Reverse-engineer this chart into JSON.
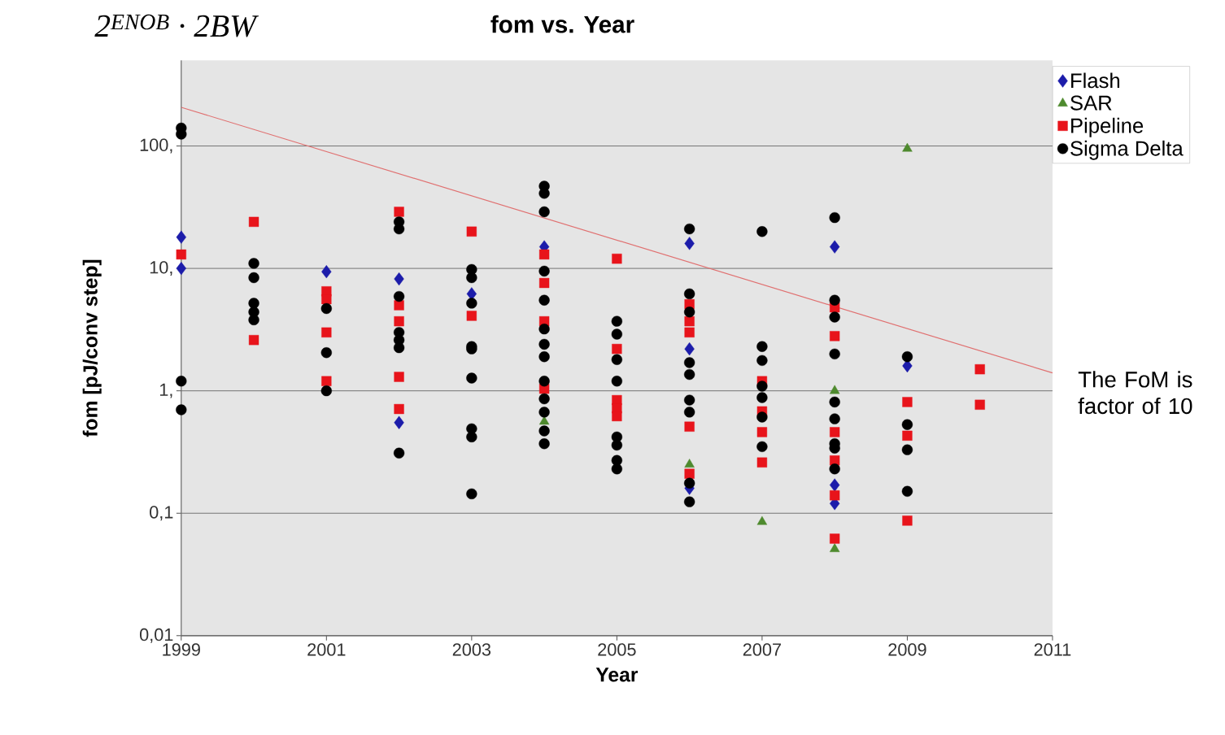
{
  "chart_data": {
    "type": "scatter",
    "title": "fom vs. Year",
    "xlabel": "Year",
    "ylabel": "fom [pJ/conv step]",
    "annotations": [
      "2$^{ENOB}$ · 2BW",
      "The FoM is factor of 10"
    ],
    "xlim": [
      1999,
      2011
    ],
    "xticks": [
      1999,
      2001,
      2003,
      2005,
      2007,
      2009,
      2011
    ],
    "ylim": [
      0.01,
      500
    ],
    "log": "y",
    "yticks": [
      {
        "value": 0.01,
        "label": "0,01"
      },
      {
        "value": 0.1,
        "label": "0,1"
      },
      {
        "value": 1,
        "label": "1,"
      },
      {
        "value": 10,
        "label": "10,"
      },
      {
        "value": 100,
        "label": "100,"
      }
    ],
    "grid": "y",
    "legend": "top right",
    "series": [
      {
        "name": "Flash",
        "color": "#1c1caa",
        "marker": "diamond",
        "x": [
          1999,
          1999,
          2001,
          2002,
          2002,
          2003,
          2004,
          2006,
          2006,
          2006,
          2008,
          2008,
          2008,
          2009
        ],
        "values": [
          18,
          10,
          9.4,
          8.2,
          0.55,
          6.2,
          15,
          16,
          2.2,
          0.16,
          15,
          0.17,
          0.12,
          1.6
        ]
      },
      {
        "name": "SAR",
        "color": "#4e8a2e",
        "marker": "triangle",
        "x": [
          2004,
          2006,
          2007,
          2008,
          2008,
          2009
        ],
        "values": [
          0.56,
          0.25,
          0.085,
          1.0,
          0.051,
          95
        ]
      },
      {
        "name": "Pipeline",
        "color": "#e8141b",
        "marker": "square",
        "x": [
          1999,
          2000,
          2000,
          2001,
          2001,
          2001,
          2001,
          2002,
          2002,
          2002,
          2002,
          2002,
          2003,
          2003,
          2004,
          2004,
          2004,
          2004,
          2005,
          2005,
          2005,
          2005,
          2005,
          2006,
          2006,
          2006,
          2006,
          2006,
          2007,
          2007,
          2007,
          2007,
          2008,
          2008,
          2008,
          2008,
          2008,
          2008,
          2009,
          2009,
          2009,
          2010,
          2010
        ],
        "values": [
          13,
          24,
          2.6,
          6.5,
          5.6,
          3.0,
          1.2,
          29,
          5.0,
          3.7,
          1.3,
          0.71,
          20,
          4.1,
          13,
          7.6,
          3.7,
          1.04,
          12,
          2.2,
          0.84,
          0.72,
          0.62,
          5.1,
          3.7,
          3.0,
          0.51,
          0.21,
          1.2,
          0.68,
          0.46,
          0.26,
          4.8,
          2.8,
          0.46,
          0.27,
          0.14,
          0.062,
          0.81,
          0.43,
          0.087,
          1.5,
          0.77
        ]
      },
      {
        "name": "Sigma Delta",
        "color": "#000000",
        "marker": "circle",
        "x": [
          1999,
          1999,
          1999,
          1999,
          2000,
          2000,
          2000,
          2000,
          2000,
          2001,
          2001,
          2001,
          2002,
          2002,
          2002,
          2002,
          2002,
          2002,
          2002,
          2003,
          2003,
          2003,
          2003,
          2003,
          2003,
          2003,
          2003,
          2003,
          2004,
          2004,
          2004,
          2004,
          2004,
          2004,
          2004,
          2004,
          2004,
          2004,
          2004,
          2004,
          2004,
          2005,
          2005,
          2005,
          2005,
          2005,
          2005,
          2005,
          2005,
          2006,
          2006,
          2006,
          2006,
          2006,
          2006,
          2006,
          2006,
          2006,
          2007,
          2007,
          2007,
          2007,
          2007,
          2007,
          2007,
          2008,
          2008,
          2008,
          2008,
          2008,
          2008,
          2008,
          2008,
          2008,
          2009,
          2009,
          2009,
          2009
        ],
        "values": [
          140,
          125,
          1.2,
          0.7,
          11,
          8.4,
          5.2,
          4.4,
          3.8,
          4.7,
          2.05,
          1.0,
          24,
          21,
          5.9,
          3.0,
          2.6,
          2.25,
          0.31,
          9.8,
          8.4,
          5.2,
          2.3,
          2.2,
          1.27,
          0.49,
          0.42,
          0.144,
          47,
          41,
          29,
          9.5,
          5.5,
          3.2,
          2.4,
          1.9,
          1.2,
          0.86,
          0.67,
          0.47,
          0.37,
          3.7,
          2.9,
          1.8,
          1.2,
          0.42,
          0.36,
          0.27,
          0.23,
          21,
          6.2,
          4.4,
          1.7,
          1.36,
          0.84,
          0.67,
          0.176,
          0.124,
          20,
          2.3,
          1.77,
          1.09,
          0.88,
          0.61,
          0.35,
          26,
          5.5,
          4.0,
          2.0,
          0.81,
          0.59,
          0.37,
          0.34,
          0.23,
          1.9,
          0.53,
          0.33,
          0.151
        ]
      },
      {
        "type": "line",
        "color": "#e07070",
        "x": [
          1999,
          2011
        ],
        "values": [
          207,
          1.4
        ]
      }
    ]
  }
}
